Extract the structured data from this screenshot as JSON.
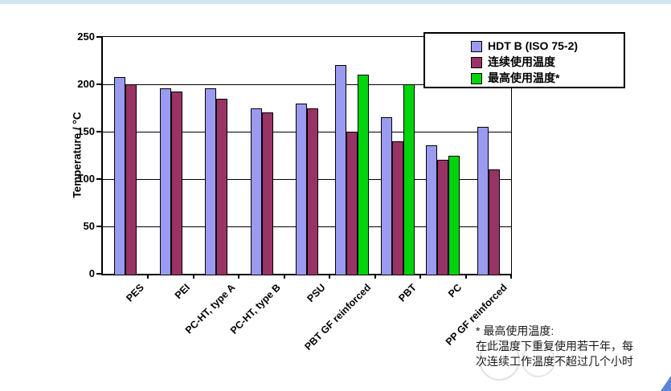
{
  "page": {
    "top_strip_color": "#cfe5f0",
    "corner_mark_color": "#5b86d5"
  },
  "chart_data": {
    "type": "bar",
    "title": "",
    "xlabel": "",
    "ylabel": "Temperature / °C",
    "ylim": [
      0,
      250
    ],
    "yticks": [
      0,
      50,
      100,
      150,
      200,
      250
    ],
    "grid": true,
    "legend_position": "top-right",
    "categories": [
      "PES",
      "PEI",
      "PC-HT, type A",
      "PC-HT, type B",
      "PSU",
      "PBT GF reinforced",
      "PBT",
      "PC",
      "PP GF reinforced"
    ],
    "series": [
      {
        "key": "hdtb",
        "name": "HDT B (ISO 75-2)",
        "color": "#9a9af0",
        "values": [
          208,
          196,
          196,
          175,
          180,
          220,
          165,
          136,
          155
        ]
      },
      {
        "key": "continuous-use",
        "name": "连续使用温度",
        "color": "#993366",
        "values": [
          200,
          192,
          185,
          170,
          175,
          150,
          140,
          120,
          110
        ]
      },
      {
        "key": "max-use",
        "name": "最高使用温度*",
        "color": "#00d40c",
        "values": [
          null,
          null,
          null,
          null,
          null,
          210,
          200,
          125,
          null
        ]
      }
    ]
  },
  "footnote": {
    "line1": "* 最高使用温度:",
    "line2": "在此温度下重复使用若干年，每",
    "line3": "次连续工作温度不超过几个小时"
  }
}
